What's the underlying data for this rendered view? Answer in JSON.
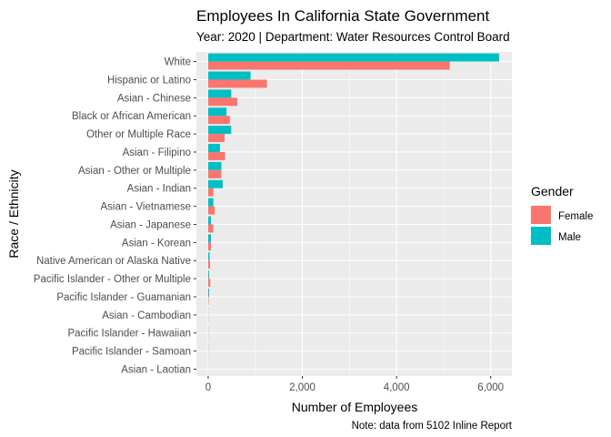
{
  "chart_data": {
    "type": "bar",
    "orientation": "horizontal",
    "title": "Employees In California State Government",
    "subtitle": "Year: 2020 | Department: Water Resources Control Board",
    "xlabel": "Number of Employees",
    "ylabel": "Race / Ethnicity",
    "caption": "Note: data from 5102 Inline Report",
    "xlim": [
      -250,
      6450
    ],
    "xticks": [
      0,
      2000,
      4000,
      6000
    ],
    "xtick_labels": [
      "0",
      "2,000",
      "4,000",
      "6,000"
    ],
    "grid": true,
    "legend": {
      "title": "Gender",
      "position": "right"
    },
    "categories": [
      "White",
      "Hispanic or Latino",
      "Asian - Chinese",
      "Black or African American",
      "Other or Multiple Race",
      "Asian - Filipino",
      "Asian - Other or Multiple",
      "Asian - Indian",
      "Asian - Vietnamese",
      "Asian - Japanese",
      "Asian - Korean",
      "Native American or Alaska Native",
      "Pacific Islander - Other or Multiple",
      "Pacific Islander - Guamanian",
      "Asian - Cambodian",
      "Pacific Islander - Hawaiian",
      "Pacific Islander - Samoan",
      "Asian - Laotian"
    ],
    "series": [
      {
        "name": "Male",
        "color": "#00BFC4",
        "values": [
          6180,
          900,
          490,
          390,
          490,
          250,
          280,
          310,
          110,
          60,
          60,
          30,
          20,
          20,
          5,
          5,
          5,
          3
        ]
      },
      {
        "name": "Female",
        "color": "#F8766D",
        "values": [
          5130,
          1250,
          620,
          460,
          350,
          360,
          280,
          110,
          140,
          110,
          60,
          40,
          45,
          10,
          5,
          5,
          5,
          3
        ]
      }
    ]
  }
}
